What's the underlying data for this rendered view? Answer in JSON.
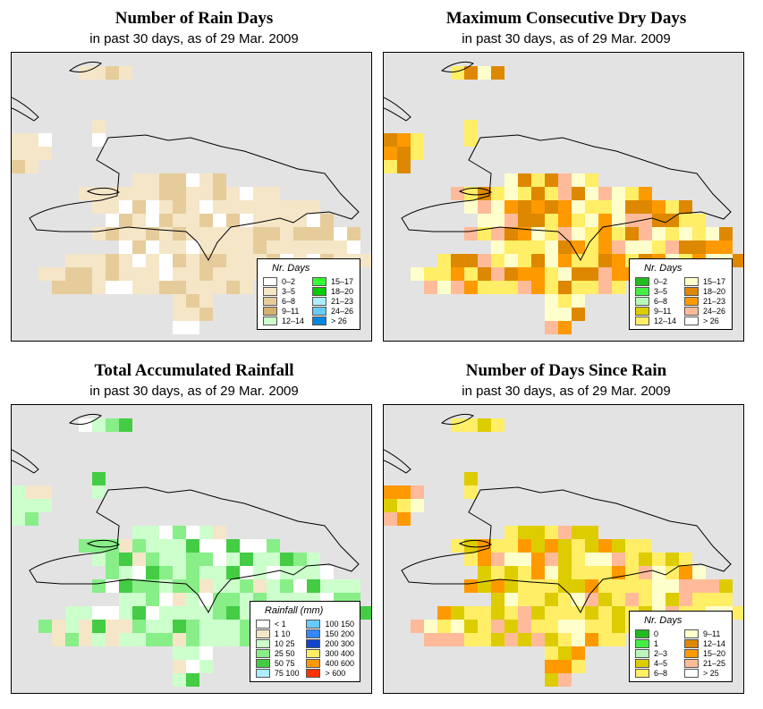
{
  "panels": [
    {
      "title": "Number of Rain Days",
      "subtitle": "in past 30 days, as of  29 Mar. 2009",
      "legend_title": "Nr. Days",
      "legend": [
        {
          "label": "0–2",
          "color": "#ffffff"
        },
        {
          "label": "3–5",
          "color": "#f5e6c8"
        },
        {
          "label": "6–8",
          "color": "#e6cc9a"
        },
        {
          "label": "9–11",
          "color": "#d4b06a"
        },
        {
          "label": "12–14",
          "color": "#ccffcc"
        },
        {
          "label": "15–17",
          "color": "#33ff33"
        },
        {
          "label": "18–20",
          "color": "#00cc00"
        },
        {
          "label": "21–23",
          "color": "#aaeeff"
        },
        {
          "label": "24–26",
          "color": "#66ccff"
        },
        {
          "label": "> 26",
          "color": "#0088dd"
        }
      ]
    },
    {
      "title": "Maximum Consecutive Dry Days",
      "subtitle": "in past 30 days, as of  29 Mar. 2009",
      "legend_title": "Nr. Days",
      "legend": [
        {
          "label": "0–2",
          "color": "#22bb22"
        },
        {
          "label": "3–5",
          "color": "#44ee44"
        },
        {
          "label": "6–8",
          "color": "#bbf5bb"
        },
        {
          "label": "9–11",
          "color": "#ddcc00"
        },
        {
          "label": "12–14",
          "color": "#ffee66"
        },
        {
          "label": "15–17",
          "color": "#ffffcc"
        },
        {
          "label": "18–20",
          "color": "#dd8800"
        },
        {
          "label": "21–23",
          "color": "#ff9900"
        },
        {
          "label": "24–26",
          "color": "#ffbb99"
        },
        {
          "label": "> 26",
          "color": "#ffffff"
        }
      ]
    },
    {
      "title": "Total Accumulated Rainfall",
      "subtitle": "in past 30 days, as of  29 Mar. 2009",
      "legend_title": "Rainfall (mm)",
      "legend": [
        {
          "label": "< 1",
          "color": "#ffffff"
        },
        {
          "label": "1    10",
          "color": "#f5e6c8"
        },
        {
          "label": "10    25",
          "color": "#ccffcc"
        },
        {
          "label": "25    50",
          "color": "#88ee88"
        },
        {
          "label": "50    75",
          "color": "#44cc44"
        },
        {
          "label": "75  100",
          "color": "#aaeeff"
        },
        {
          "label": "100  150",
          "color": "#66ccff"
        },
        {
          "label": "150  200",
          "color": "#3388ff"
        },
        {
          "label": "200  300",
          "color": "#1144cc"
        },
        {
          "label": "300  400",
          "color": "#ffee66"
        },
        {
          "label": "400  600",
          "color": "#ff9900"
        },
        {
          "label": "> 600",
          "color": "#ff3300"
        }
      ]
    },
    {
      "title": "Number of Days Since Rain",
      "subtitle": "in past 30 days, as of  29 Mar. 2009",
      "legend_title": "Nr. Days",
      "legend": [
        {
          "label": "0",
          "color": "#22bb22"
        },
        {
          "label": "1",
          "color": "#44ee44"
        },
        {
          "label": "2–3",
          "color": "#bbf5bb"
        },
        {
          "label": "4–5",
          "color": "#ddcc00"
        },
        {
          "label": "6–8",
          "color": "#ffee66"
        },
        {
          "label": "9–11",
          "color": "#ffffcc"
        },
        {
          "label": "12–14",
          "color": "#dd8800"
        },
        {
          "label": "15–20",
          "color": "#ff9900"
        },
        {
          "label": "21–25",
          "color": "#ffbb99"
        },
        {
          "label": "> 25",
          "color": "#ffffff"
        }
      ]
    }
  ],
  "colors": {
    "map_background": "#e3e3e3",
    "coastline": "#000000"
  }
}
